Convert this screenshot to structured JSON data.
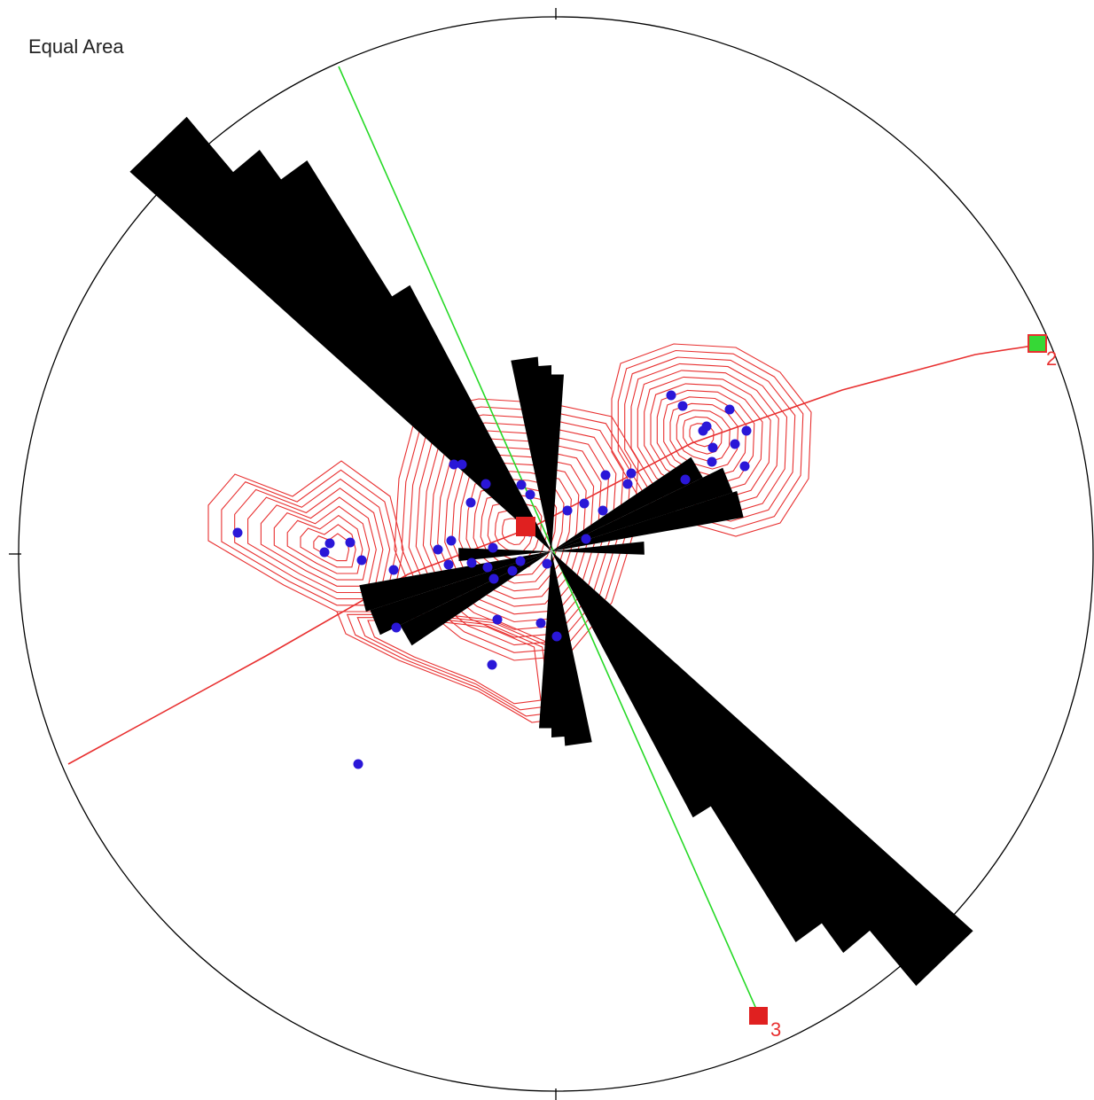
{
  "title": "Equal Area",
  "colors": {
    "rose": "#000000",
    "rose_inner": "#5a0000",
    "contour": "#e83030",
    "poles": "#2a17d8",
    "great_circle": "#e83030",
    "green_line": "#26d926",
    "marker_red": "#e02020",
    "marker_green": "#36d836",
    "net": "#000000"
  },
  "markers": [
    {
      "id": "2",
      "label": "2",
      "trend": 76,
      "plunge": 0,
      "color": "#36d836"
    },
    {
      "id": "3",
      "label": "3",
      "trend": 157,
      "plunge": 0,
      "color": "#e02020"
    },
    {
      "id": "1",
      "label": "",
      "trend": 300,
      "plunge": 84,
      "color": "#e02020"
    }
  ]
}
